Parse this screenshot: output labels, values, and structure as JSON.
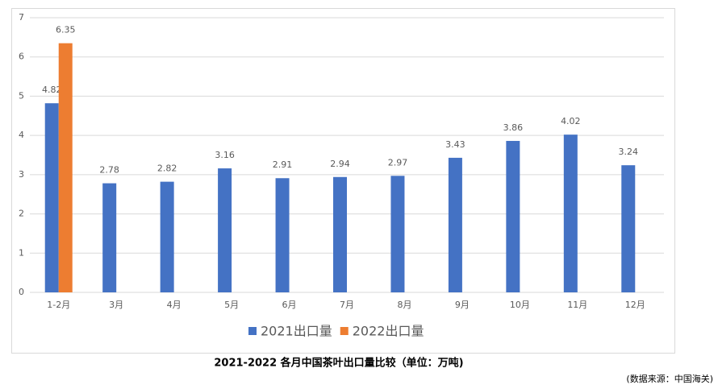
{
  "chart_data": {
    "type": "bar",
    "title": "2021-2022 各月中国茶叶出口量比较（单位：万吨)",
    "source": "(数据来源：中国海关)",
    "categories": [
      "1-2月",
      "3月",
      "4月",
      "5月",
      "6月",
      "7月",
      "8月",
      "9月",
      "10月",
      "11月",
      "12月"
    ],
    "series": [
      {
        "name": "2021出口量",
        "color": "#4472c4",
        "values": [
          4.82,
          2.78,
          2.82,
          3.16,
          2.91,
          2.94,
          2.97,
          3.43,
          3.86,
          4.02,
          3.24
        ]
      },
      {
        "name": "2022出口量",
        "color": "#ed7d31",
        "values": [
          6.35,
          null,
          null,
          null,
          null,
          null,
          null,
          null,
          null,
          null,
          null
        ]
      }
    ],
    "ylim": [
      0,
      7
    ],
    "yticks": [
      0,
      1,
      2,
      3,
      4,
      5,
      6,
      7
    ],
    "grid": true,
    "legend": "bottom"
  }
}
